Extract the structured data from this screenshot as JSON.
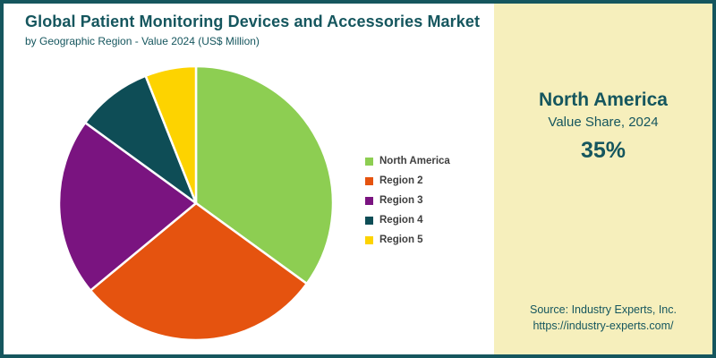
{
  "header": {
    "title": "Global Patient Monitoring Devices and Accessories Market",
    "subtitle": "by Geographic Region - Value 2024 (US$ Million)"
  },
  "chart_data": {
    "type": "pie",
    "title": "Global Patient Monitoring Devices and Accessories Market by Geographic Region - Value 2024 (US$ Million)",
    "categories": [
      "North America",
      "Region 2",
      "Region 3",
      "Region 4",
      "Region 5"
    ],
    "values": [
      35,
      29,
      21,
      9,
      6
    ],
    "unit": "percent",
    "colors": [
      "#8DCE52",
      "#E5530F",
      "#7A1480",
      "#0E4D56",
      "#FDD300"
    ],
    "start_angle_deg": 0,
    "direction": "clockwise",
    "slice_separator_color": "#FFFFFF",
    "legend_position": "right"
  },
  "highlight_panel": {
    "region": "North America",
    "caption": "Value Share, 2024",
    "value": "35%",
    "background_color": "#F6EFBC",
    "text_color": "#15565E"
  },
  "source": {
    "line1": "Source: Industry Experts, Inc.",
    "line2": "https://industry-experts.com/"
  },
  "theme": {
    "border_color": "#15565E",
    "title_color": "#15565E",
    "legend_text_color": "#3F3F3F"
  }
}
